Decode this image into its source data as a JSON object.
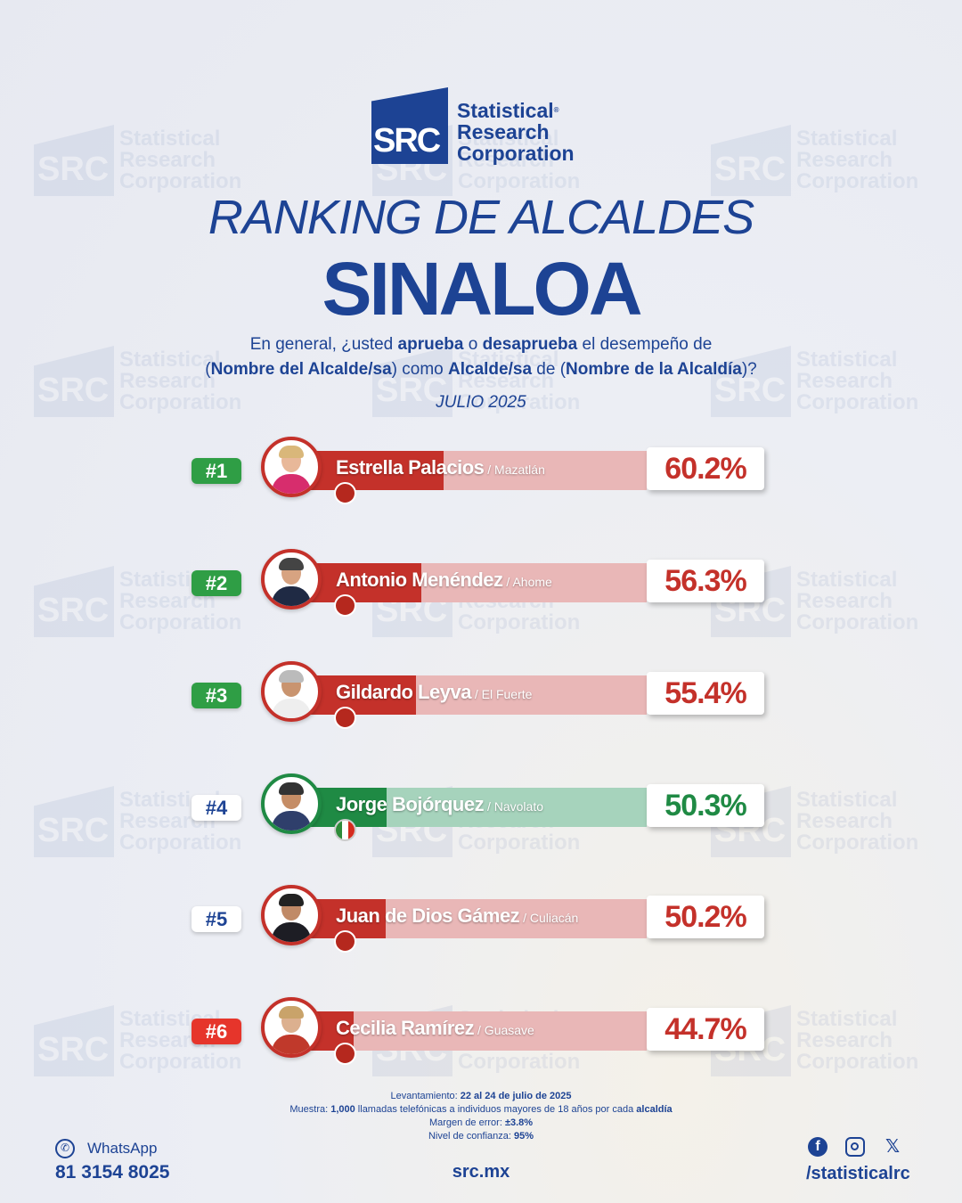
{
  "brand": {
    "logo_mark": "SRC",
    "line1": "Statistical",
    "reg": "®",
    "line2": "Research",
    "line3": "Corporation"
  },
  "title": "RANKING DE ALCALDES",
  "subtitle": "SINALOA",
  "question": {
    "p1": "En general, ¿usted ",
    "b1": "aprueba",
    "p2": " o ",
    "b2": "desaprueba",
    "p3": " el desempeño de",
    "p4": "(",
    "b3": "Nombre del Alcalde/sa",
    "p5": ") como ",
    "b4": "Alcalde/sa",
    "p6": " de (",
    "b5": "Nombre de la Alcaldía",
    "p7": ")?"
  },
  "month": "JULIO 2025",
  "colors": {
    "red": "#c4312a",
    "red_light": "#e9b7b7",
    "green": "#1f8a44",
    "green_light": "#a6d3bc",
    "rank_green": "#2f9e45",
    "rank_red": "#e6352b",
    "navy": "#1d4394"
  },
  "chart_data": {
    "type": "bar",
    "orientation": "horizontal",
    "categories": [
      "Estrella Palacios",
      "Antonio Menéndez",
      "Gildardo Leyva",
      "Jorge Bojórquez",
      "Juan de Dios Gámez",
      "Cecilia Ramírez"
    ],
    "values": [
      60.2,
      56.3,
      55.4,
      50.3,
      50.2,
      44.7
    ],
    "unit": "%",
    "rows": [
      {
        "rank": "#1",
        "name": "Estrella Palacios",
        "city": "/ Mazatlán",
        "value": 60.2,
        "label": "60.2%",
        "party": "morena",
        "party_icon": "morena-logo-icon",
        "color": "red",
        "rank_style": "green"
      },
      {
        "rank": "#2",
        "name": "Antonio Menéndez",
        "city": "/ Ahome",
        "value": 56.3,
        "label": "56.3%",
        "party": "morena",
        "party_icon": "morena-logo-icon",
        "color": "red",
        "rank_style": "green"
      },
      {
        "rank": "#3",
        "name": "Gildardo Leyva",
        "city": "/ El Fuerte",
        "value": 55.4,
        "label": "55.4%",
        "party": "morena",
        "party_icon": "morena-logo-icon",
        "color": "red",
        "rank_style": "green"
      },
      {
        "rank": "#4",
        "name": "Jorge Bojórquez",
        "city": "/ Navolato",
        "value": 50.3,
        "label": "50.3%",
        "party": "pri",
        "party_icon": "pri-logo-icon",
        "color": "green",
        "rank_style": "white"
      },
      {
        "rank": "#5",
        "name": "Juan de Dios Gámez",
        "city": "/ Culiacán",
        "value": 50.2,
        "label": "50.2%",
        "party": "morena",
        "party_icon": "morena-logo-icon",
        "color": "red",
        "rank_style": "white"
      },
      {
        "rank": "#6",
        "name": "Cecilia Ramírez",
        "city": "/ Guasave",
        "value": 44.7,
        "label": "44.7%",
        "party": "morena",
        "party_icon": "morena-logo-icon",
        "color": "red",
        "rank_style": "red"
      }
    ]
  },
  "footnote": {
    "l1a": "Levantamiento: ",
    "l1b": "22 al 24 de julio de 2025",
    "l2a": "Muestra: ",
    "l2b": "1,000",
    "l2c": " llamadas telefónicas a individuos mayores de 18 años por cada ",
    "l2d": "alcaldía",
    "l3a": "Margen de error: ",
    "l3b": "±3.8%",
    "l4a": "Nivel de confianza: ",
    "l4b": "95%"
  },
  "contact": {
    "whatsapp_label": "WhatsApp",
    "whatsapp_number": "81 3154 8025",
    "website": "src.mx",
    "social_handle": "/statisticalrc"
  }
}
